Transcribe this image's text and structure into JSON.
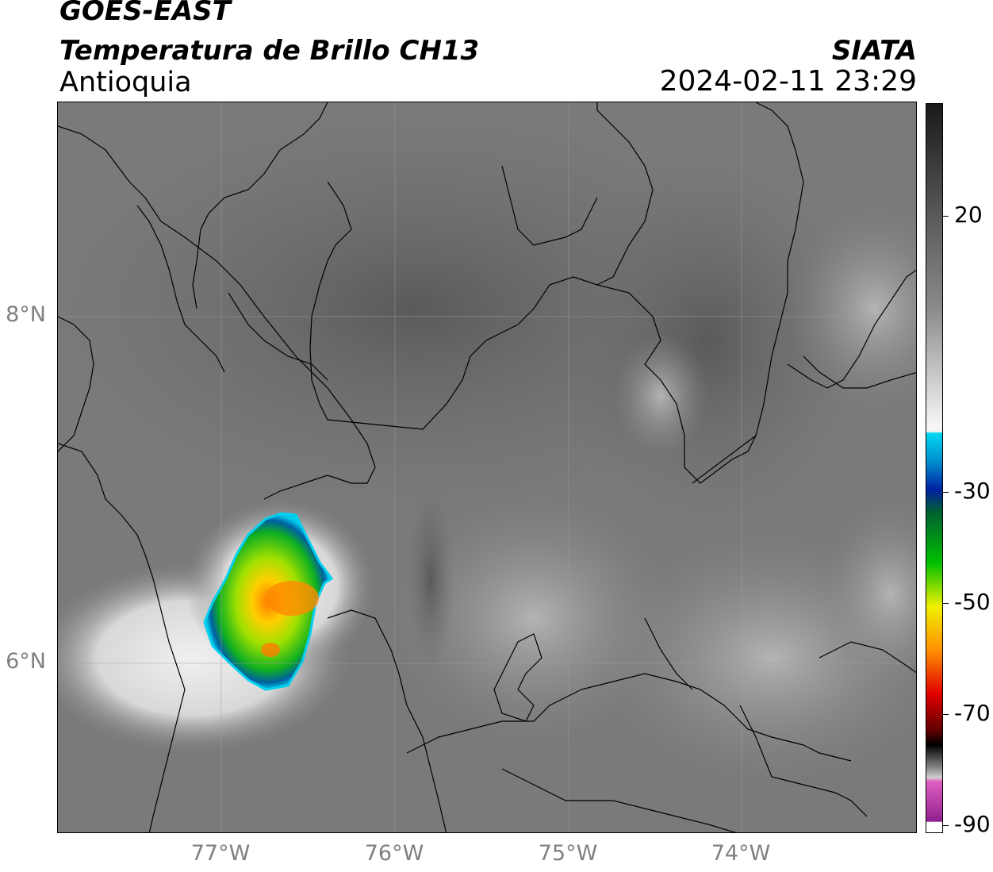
{
  "header": {
    "satellite": "GOES-EAST",
    "product": "Temperatura de Brillo CH13",
    "region": "Antioquia",
    "brand": "SIATA",
    "datetime": "2024-02-11 23:29"
  },
  "map": {
    "lat_labels": [
      "8°N",
      "6°N"
    ],
    "lon_labels": [
      "77°W",
      "76°W",
      "75°W",
      "74°W"
    ]
  },
  "colorbar": {
    "labels": [
      "20",
      "-30",
      "-50",
      "-70",
      "-90"
    ],
    "colors": {
      "warm_dark": "#1a1a1a",
      "mid_gray": "#8a8a8a",
      "white": "#f5f5f5",
      "cyan": "#00d8f0",
      "blue": "#0020a0",
      "green": "#00c000",
      "yellow": "#f0f000",
      "orange": "#ff9000",
      "red": "#e00000",
      "black": "#000000",
      "pink": "#e060c0",
      "purple": "#902090"
    }
  }
}
